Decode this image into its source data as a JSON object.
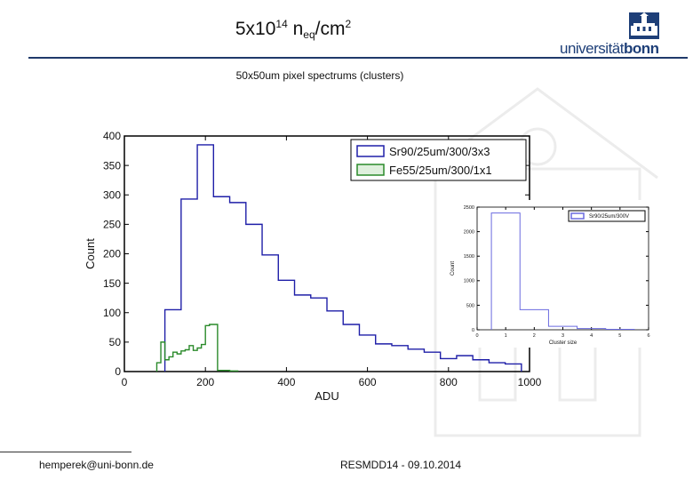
{
  "slide": {
    "title_base": "5x10",
    "title_exp": "14",
    "title_unit": " n",
    "title_sub": "eq",
    "title_tail": "/cm",
    "title_tail_exp": "2",
    "subtitle": "50x50um pixel spectrums (clusters)",
    "logo_text_regular": "universität",
    "logo_text_bold": "bonn",
    "footer_left": "hemperek@uni-bonn.de",
    "footer_center": "RESMDD14 - 09.10.2014",
    "icons": [
      "university-seal-icon",
      "building-watermark-icon"
    ]
  },
  "chart_data": [
    {
      "type": "histogram",
      "xlabel": "ADU",
      "ylabel": "Count",
      "xlim": [
        0,
        1000
      ],
      "ylim": [
        0,
        400
      ],
      "xticks": [
        "0",
        "200",
        "400",
        "600",
        "800",
        "1000"
      ],
      "yticks": [
        "0",
        "50",
        "100",
        "150",
        "200",
        "250",
        "300",
        "350",
        "400"
      ],
      "grid": false,
      "legend_position": "top-right",
      "series": [
        {
          "name": "Sr90/25um/300/3x3",
          "color": "#1f1fa8",
          "edges": [
            100,
            140,
            180,
            220,
            260,
            300,
            340,
            380,
            420,
            460,
            500,
            540,
            580,
            620,
            660,
            700,
            740,
            780,
            820,
            860,
            900,
            940,
            980
          ],
          "values": [
            105,
            293,
            385,
            297,
            287,
            250,
            198,
            155,
            130,
            125,
            103,
            80,
            62,
            47,
            44,
            38,
            33,
            22,
            27,
            20,
            15,
            13
          ]
        },
        {
          "name": "Fe55/25um/300/1x1",
          "color": "#2a8a2a",
          "edges": [
            80,
            90,
            100,
            110,
            120,
            130,
            140,
            150,
            160,
            170,
            180,
            190,
            200,
            210,
            220,
            230,
            240,
            250,
            260,
            270,
            280
          ],
          "values": [
            15,
            50,
            20,
            25,
            33,
            30,
            35,
            37,
            44,
            36,
            40,
            46,
            78,
            80,
            80,
            2,
            2,
            2,
            1,
            1
          ]
        }
      ]
    },
    {
      "type": "histogram",
      "xlabel": "Cluster size",
      "ylabel": "Count",
      "xlim": [
        0,
        6
      ],
      "ylim": [
        0,
        2500
      ],
      "xticks": [
        "0",
        "1",
        "2",
        "3",
        "4",
        "5",
        "6"
      ],
      "yticks": [
        "0",
        "500",
        "1000",
        "1500",
        "2000",
        "2500"
      ],
      "legend_position": "top-right",
      "series": [
        {
          "name": "Sr90/25um/300V",
          "color": "#6a6adf",
          "edges": [
            0.5,
            1.5,
            2.5,
            3.5,
            4.5,
            5.5
          ],
          "values": [
            2380,
            410,
            70,
            25,
            10
          ]
        }
      ]
    }
  ]
}
